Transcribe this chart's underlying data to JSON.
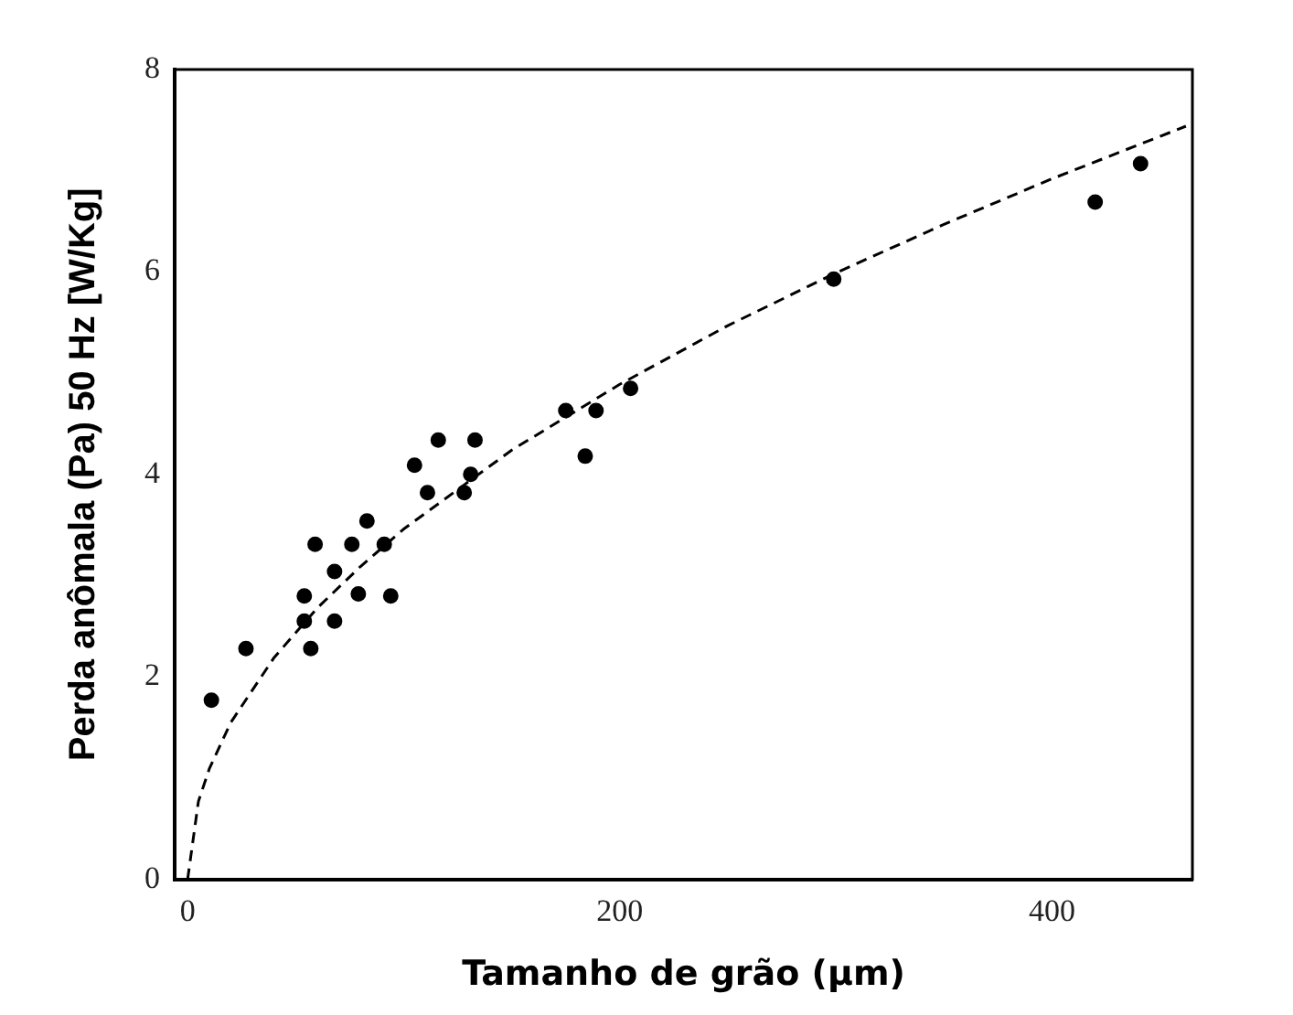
{
  "chart_data": {
    "type": "scatter",
    "xlabel": "Tamanho de grão (µm)",
    "ylabel": "Perda anômala (Pa) 50 Hz [W/Kg]",
    "xlim": [
      -6,
      465
    ],
    "xticks": [
      0,
      200,
      400
    ],
    "ylim": [
      0,
      8
    ],
    "yticks": [
      0,
      2,
      4,
      6,
      8
    ],
    "grid": false,
    "legend": false,
    "series": [
      {
        "type": "scatter",
        "color": "#000000",
        "marker": "circle",
        "x": [
          11,
          27,
          57,
          54,
          54,
          68,
          59,
          76,
          91,
          68,
          79,
          94,
          83,
          105,
          116,
          133,
          111,
          128,
          131,
          175,
          189,
          184,
          205,
          299,
          420,
          441
        ],
        "values": [
          1.77,
          2.28,
          2.28,
          2.8,
          2.55,
          2.55,
          3.31,
          3.31,
          3.31,
          3.04,
          2.82,
          2.8,
          3.54,
          4.09,
          4.34,
          4.34,
          3.82,
          3.82,
          4.0,
          4.63,
          4.63,
          4.18,
          4.85,
          5.93,
          6.69,
          7.07
        ]
      },
      {
        "type": "line",
        "color": "#000000",
        "marker": "none",
        "line_style": "dashed",
        "x": [
          0,
          5,
          10,
          20,
          40,
          60,
          80,
          100,
          150,
          200,
          250,
          300,
          350,
          400,
          462
        ],
        "values": [
          0,
          0.77,
          1.09,
          1.55,
          2.19,
          2.68,
          3.09,
          3.46,
          4.24,
          4.89,
          5.47,
          5.99,
          6.47,
          6.92,
          7.44
        ]
      }
    ]
  }
}
